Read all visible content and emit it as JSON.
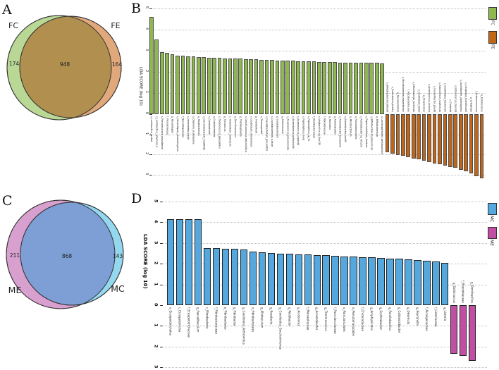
{
  "panels": {
    "a": {
      "letter": "A"
    },
    "b": {
      "letter": "B"
    },
    "c": {
      "letter": "C"
    },
    "d": {
      "letter": "D"
    }
  },
  "chart_data": [
    {
      "type": "bar",
      "panel": "B",
      "axis_label": "LDA SCORE (log 10)",
      "ticks_up": [
        0,
        1,
        2,
        3,
        4,
        5
      ],
      "ticks_down": [
        1,
        2,
        3
      ],
      "ylim_up": 5.2,
      "ylim_down": 3.3,
      "grid": "dotted",
      "legend_position": "top-right",
      "series": [
        {
          "name": "FC",
          "color": "#8eb84f",
          "direction": "up",
          "labels": [
            "s_Lactobacillus_reuteri",
            "s_Lactobacillus_amylovorus",
            "s_Prevotellaceae_massiliense",
            "f_Prevotellaceae",
            "g_Nocardiopsis",
            "s_Nocardiopsis_chromatogenes",
            "f_Nocardiopsaceae",
            "s_Mannheimia_haglii",
            "s_Olsenella_scatoligenes",
            "g_Mogibacterium",
            "s_Corynebacterium_mastitidis",
            "c_Coriobacteriia",
            "o_Coriobacteriales",
            "s_Thermococcus_piezophilus",
            "g_Pyrococcus",
            "s_Thermofilum_adornatum",
            "g_Desulfurococcus",
            "g_Thermosphaera",
            "s_Desulfurococcus_amylolyticus",
            "s_Clostridium_stercorarium",
            "g_Thermofilum",
            "c_Thermoprotei",
            "s_Faecalibacterium_prausnitzii",
            "s_Cryptobacterium_curtum",
            "g_Cryptobacterium",
            "g_Adlercreutzia",
            "s_Anaerococcus_provencensis",
            "s_Anaerobranca_gottschalkii",
            "s_Anaerococcus_vaginalis",
            "s_Peptoniphilus_harei",
            "s_Peptoniphilus_sp_RL",
            "f_Odoribacteraceae",
            "s_Virgibacillus_sp_Bac330",
            "f_Moraxellaceae",
            "g_Moraxella",
            "g_Acinetobacter",
            "s_Acinetobacter_baumannii",
            "s_Acinetobacter_lwoffii",
            "g_Microbacterium",
            "o_Pseudomonadales",
            "s_Acinetobacter_sp_WC355",
            "s_Peptoclostridium_faecium",
            "s_Bifidobacterium_merycicum",
            "g_Bifidobacterium",
            "s_Lachnospiraceae_pectinoschiza"
          ],
          "values": [
            4.6,
            3.55,
            2.92,
            2.9,
            2.82,
            2.78,
            2.76,
            2.74,
            2.72,
            2.7,
            2.69,
            2.68,
            2.67,
            2.66,
            2.65,
            2.64,
            2.63,
            2.62,
            2.61,
            2.6,
            2.59,
            2.58,
            2.57,
            2.56,
            2.55,
            2.54,
            2.53,
            2.52,
            2.51,
            2.5,
            2.5,
            2.49,
            2.48,
            2.47,
            2.46,
            2.46,
            2.45,
            2.45,
            2.44,
            2.44,
            2.43,
            2.43,
            2.42,
            2.42,
            2.41
          ]
        },
        {
          "name": "FE",
          "color": "#c06619",
          "direction": "down",
          "labels": [
            "s_Bifidobacterium_bifidum",
            "s_Eubacterium_brachy",
            "g_Mycobacterium",
            "s_Mycobacterium_mageritense",
            "f_Mycobacteriaceae",
            "s_Ohtaekwangia_koreensis",
            "s_Clostridium_tetani",
            "g_Anaerovorax",
            "s_Anaerococcus_octavius",
            "s_Flavonifractor_plautii",
            "s_Eubacterium_saphenum",
            "s_Clostridiales_bacterium",
            "c_Clostridia",
            "s_Enterococcus_faecalis",
            "s_Oscillibacter_valericigenes",
            "s_Cytophaga_hutchinsonii",
            "g_Cytophaga",
            "f_Enterococcaceae",
            "g_Enterococcus"
          ],
          "values": [
            1.9,
            1.96,
            2.02,
            2.08,
            2.14,
            2.2,
            2.26,
            2.32,
            2.38,
            2.44,
            2.5,
            2.56,
            2.62,
            2.68,
            2.76,
            2.84,
            2.95,
            3.08,
            3.2
          ]
        }
      ]
    },
    {
      "type": "bar",
      "panel": "D",
      "axis_label": "LDA SCORE (log 10)",
      "ticks_up": [
        0,
        1,
        2,
        3,
        4,
        5
      ],
      "ticks_down": [
        1,
        2,
        3
      ],
      "ylim_up": 5.2,
      "ylim_down": 3.2,
      "grid": "dotted",
      "legend_position": "top-right",
      "series": [
        {
          "name": "MC",
          "color": "#54a8de",
          "direction": "up",
          "labels": [
            "o_Erysipelotrichales",
            "c_Erysipelotrichia",
            "f_Erysipelotrichaceae",
            "g_Faecalibaculum",
            "c_Fibrobacteria",
            "f_Fibrobacteraceae",
            "p_Fibrobacteres",
            "g_Fibrobacter",
            "g_Candidatus_Arthromitus",
            "o_Fibrobacterales",
            "g_Allobaculum",
            "g_Roseburia",
            "g_Candidatus_Saccharimonas",
            "g_Pedobacter",
            "g_Acidovorax",
            "f_Moraxellaceae",
            "g_Acinetobacter",
            "g_Thermococcus",
            "f_Parvularculaceae",
            "o_Parvularculales",
            "o_Pseudomonadales",
            "f_Chromatiaceae",
            "g_Amphiplicatus",
            "g_Erythrobacter",
            "g_Paraliobacillus",
            "g_Colidextribacter",
            "g_Desemzia",
            "g_Reyranella",
            "f_Alcaligenaceae",
            "f_Listeriaceae",
            "g_Listeria"
          ],
          "values": [
            4.15,
            4.15,
            4.15,
            4.15,
            2.75,
            2.75,
            2.73,
            2.73,
            2.68,
            2.6,
            2.55,
            2.52,
            2.5,
            2.48,
            2.46,
            2.44,
            2.42,
            2.4,
            2.38,
            2.36,
            2.34,
            2.32,
            2.3,
            2.28,
            2.26,
            2.24,
            2.22,
            2.18,
            2.14,
            2.1,
            2.05
          ]
        },
        {
          "name": "ME",
          "color": "#c04ea2",
          "direction": "down",
          "labels": [
            "g_Salinicoccus",
            "f_Rhodobiaceae",
            "g_Domibacillus"
          ],
          "values": [
            2.35,
            2.45,
            2.7
          ]
        }
      ]
    },
    {
      "type": "venn",
      "panel": "A",
      "sets": [
        {
          "label": "FC",
          "color": "#bad895"
        },
        {
          "label": "FE",
          "color": "#e1a87b"
        }
      ],
      "overlap_color": "#b18f4f",
      "values": {
        "left_only": 174,
        "overlap": 948,
        "right_only": 164
      }
    },
    {
      "type": "venn",
      "panel": "C",
      "sets": [
        {
          "label": "ME",
          "color": "#d8a0ce"
        },
        {
          "label": "MC",
          "color": "#94d8ef"
        }
      ],
      "overlap_color": "#7e9fd5",
      "values": {
        "left_only": 211,
        "overlap": 868,
        "right_only": 143
      }
    }
  ]
}
